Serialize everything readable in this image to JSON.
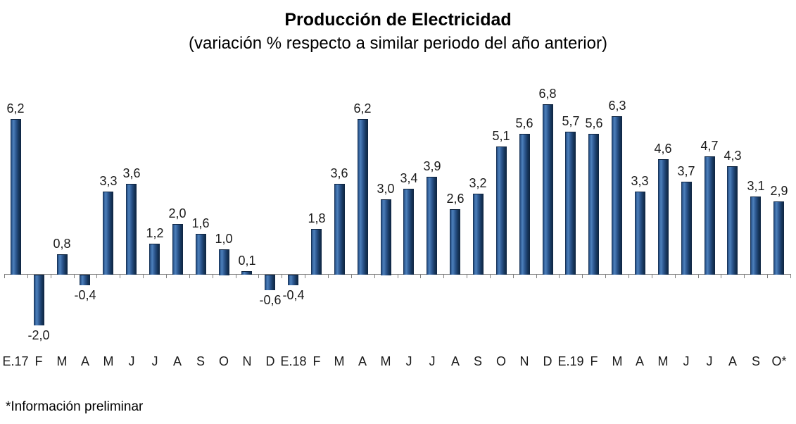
{
  "title": "Producción de Electricidad",
  "subtitle": "(variación % respecto a similar periodo del año anterior)",
  "footnote": "*Información preliminar",
  "colors": {
    "bar_light": "#4d80bb",
    "bar_mid": "#2c578f",
    "bar_dark": "#16365c",
    "bar_edge": "#0e2440",
    "axis": "#808080",
    "text": "#1a1a1a"
  },
  "chart_data": {
    "type": "bar",
    "title": "Producción de Electricidad",
    "subtitle": "(variación % respecto a similar periodo del año anterior)",
    "xlabel": "",
    "ylabel": "variación %",
    "ylim": [
      -2.5,
      7.2
    ],
    "grid": false,
    "legend": false,
    "decimal_separator": ",",
    "categories": [
      "E.17",
      "F",
      "M",
      "A",
      "M",
      "J",
      "J",
      "A",
      "S",
      "O",
      "N",
      "D",
      "E.18",
      "F",
      "M",
      "A",
      "M",
      "J",
      "J",
      "A",
      "S",
      "O",
      "N",
      "D",
      "E.19",
      "F",
      "M",
      "A",
      "M",
      "J",
      "J",
      "A",
      "S",
      "O*"
    ],
    "values": [
      6.2,
      -2.0,
      0.8,
      -0.4,
      3.3,
      3.6,
      1.2,
      2.0,
      1.6,
      1.0,
      0.1,
      -0.6,
      -0.4,
      1.8,
      3.6,
      6.2,
      3.0,
      3.4,
      3.9,
      2.6,
      3.2,
      5.1,
      5.6,
      6.8,
      5.7,
      5.6,
      6.3,
      3.3,
      4.6,
      3.7,
      4.7,
      4.3,
      3.1,
      2.9
    ]
  }
}
